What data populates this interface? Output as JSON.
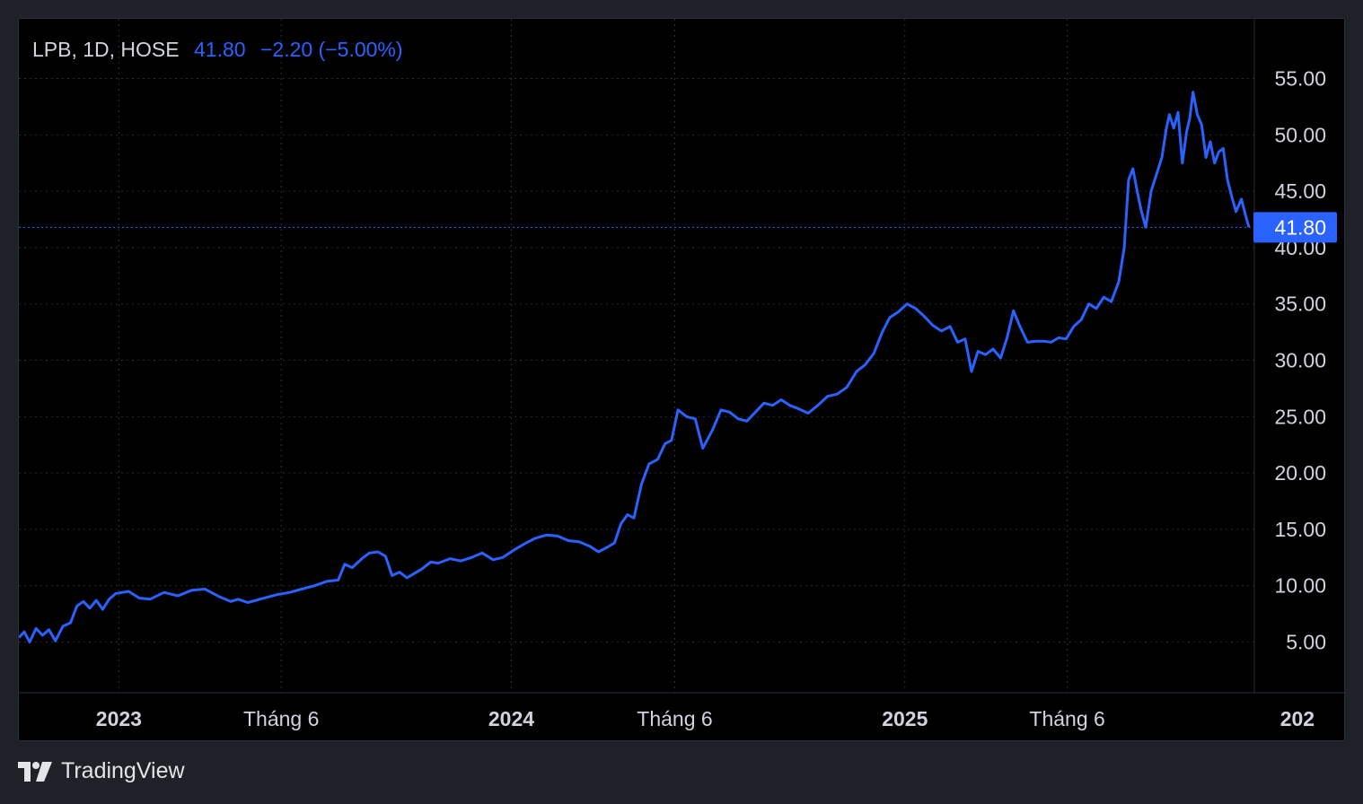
{
  "legend": {
    "symbol": "LPB, 1D, HOSE",
    "price": "41.80",
    "change": "−2.20 (−5.00%)"
  },
  "branding": {
    "name": "TradingView",
    "logo": "tradingview-logo-icon"
  },
  "colors": {
    "background": "#000000",
    "frame": "#1f2128",
    "line": "#2962ff",
    "grid": "#2a2e39",
    "axis_text": "#d1d4dc"
  },
  "chart_data": {
    "type": "line",
    "symbol": "LPB",
    "interval": "1D",
    "exchange": "HOSE",
    "ylim": [
      0.5,
      60.3
    ],
    "y_ticks": [
      5,
      10,
      15,
      20,
      25,
      30,
      35,
      40,
      45,
      50,
      55
    ],
    "y_tick_labels": [
      "5.00",
      "10.00",
      "15.00",
      "20.00",
      "25.00",
      "30.00",
      "35.00",
      "40.00",
      "45.00",
      "50.00",
      "55.00"
    ],
    "x_range": [
      "2022-09-30",
      "2025-11-22"
    ],
    "x_ticks": [
      {
        "date": "2023-01-01",
        "label": "2023",
        "bold": true
      },
      {
        "date": "2023-06-01",
        "label": "Tháng 6",
        "bold": false
      },
      {
        "date": "2024-01-01",
        "label": "2024",
        "bold": true
      },
      {
        "date": "2024-06-01",
        "label": "Tháng 6",
        "bold": false
      },
      {
        "date": "2025-01-01",
        "label": "2025",
        "bold": true
      },
      {
        "date": "2025-06-01",
        "label": "Tháng 6",
        "bold": false
      },
      {
        "date": "2026-01-01",
        "label": "202",
        "bold": true
      }
    ],
    "last_price": 41.8,
    "grid": true,
    "series": [
      {
        "points": [
          [
            "2022-09-30",
            5.4
          ],
          [
            "2022-10-05",
            5.9
          ],
          [
            "2022-10-10",
            5.0
          ],
          [
            "2022-10-16",
            6.2
          ],
          [
            "2022-10-22",
            5.6
          ],
          [
            "2022-10-28",
            6.1
          ],
          [
            "2022-11-03",
            5.1
          ],
          [
            "2022-11-10",
            6.4
          ],
          [
            "2022-11-17",
            6.7
          ],
          [
            "2022-11-23",
            8.2
          ],
          [
            "2022-11-29",
            8.6
          ],
          [
            "2022-12-05",
            8.0
          ],
          [
            "2022-12-11",
            8.7
          ],
          [
            "2022-12-17",
            7.9
          ],
          [
            "2022-12-23",
            8.8
          ],
          [
            "2022-12-29",
            9.3
          ],
          [
            "2023-01-10",
            9.5
          ],
          [
            "2023-01-20",
            8.9
          ],
          [
            "2023-01-30",
            8.8
          ],
          [
            "2023-02-12",
            9.4
          ],
          [
            "2023-02-25",
            9.1
          ],
          [
            "2023-03-10",
            9.6
          ],
          [
            "2023-03-22",
            9.7
          ],
          [
            "2023-04-05",
            9.0
          ],
          [
            "2023-04-15",
            8.6
          ],
          [
            "2023-04-22",
            8.8
          ],
          [
            "2023-05-01",
            8.5
          ],
          [
            "2023-05-12",
            8.8
          ],
          [
            "2023-05-28",
            9.2
          ],
          [
            "2023-06-09",
            9.4
          ],
          [
            "2023-06-20",
            9.7
          ],
          [
            "2023-07-02",
            10.0
          ],
          [
            "2023-07-14",
            10.4
          ],
          [
            "2023-07-24",
            10.5
          ],
          [
            "2023-07-30",
            11.9
          ],
          [
            "2023-08-06",
            11.6
          ],
          [
            "2023-08-15",
            12.4
          ],
          [
            "2023-08-22",
            12.9
          ],
          [
            "2023-08-30",
            13.0
          ],
          [
            "2023-09-06",
            12.6
          ],
          [
            "2023-09-12",
            10.9
          ],
          [
            "2023-09-19",
            11.2
          ],
          [
            "2023-09-26",
            10.7
          ],
          [
            "2023-10-03",
            11.1
          ],
          [
            "2023-10-10",
            11.5
          ],
          [
            "2023-10-18",
            12.1
          ],
          [
            "2023-10-25",
            12.0
          ],
          [
            "2023-11-05",
            12.4
          ],
          [
            "2023-11-15",
            12.2
          ],
          [
            "2023-11-25",
            12.5
          ],
          [
            "2023-12-05",
            12.9
          ],
          [
            "2023-12-15",
            12.3
          ],
          [
            "2023-12-24",
            12.5
          ],
          [
            "2024-01-04",
            13.2
          ],
          [
            "2024-01-13",
            13.7
          ],
          [
            "2024-01-23",
            14.2
          ],
          [
            "2024-02-03",
            14.5
          ],
          [
            "2024-02-13",
            14.4
          ],
          [
            "2024-02-23",
            14.0
          ],
          [
            "2024-03-04",
            13.9
          ],
          [
            "2024-03-14",
            13.5
          ],
          [
            "2024-03-22",
            13.0
          ],
          [
            "2024-03-30",
            13.4
          ],
          [
            "2024-04-06",
            13.8
          ],
          [
            "2024-04-12",
            15.5
          ],
          [
            "2024-04-18",
            16.3
          ],
          [
            "2024-04-24",
            16.0
          ],
          [
            "2024-05-01",
            19.0
          ],
          [
            "2024-05-08",
            20.8
          ],
          [
            "2024-05-16",
            21.2
          ],
          [
            "2024-05-23",
            22.6
          ],
          [
            "2024-05-29",
            22.9
          ],
          [
            "2024-06-04",
            25.6
          ],
          [
            "2024-06-12",
            25.0
          ],
          [
            "2024-06-20",
            24.8
          ],
          [
            "2024-06-27",
            22.2
          ],
          [
            "2024-07-06",
            23.8
          ],
          [
            "2024-07-14",
            25.6
          ],
          [
            "2024-07-22",
            25.4
          ],
          [
            "2024-07-30",
            24.8
          ],
          [
            "2024-08-07",
            24.6
          ],
          [
            "2024-08-15",
            25.4
          ],
          [
            "2024-08-23",
            26.2
          ],
          [
            "2024-08-31",
            26.0
          ],
          [
            "2024-09-08",
            26.5
          ],
          [
            "2024-09-16",
            26.0
          ],
          [
            "2024-09-24",
            25.7
          ],
          [
            "2024-10-03",
            25.3
          ],
          [
            "2024-10-12",
            26.0
          ],
          [
            "2024-10-21",
            26.8
          ],
          [
            "2024-10-30",
            27.0
          ],
          [
            "2024-11-08",
            27.6
          ],
          [
            "2024-11-17",
            29.0
          ],
          [
            "2024-11-25",
            29.6
          ],
          [
            "2024-12-03",
            30.6
          ],
          [
            "2024-12-11",
            32.5
          ],
          [
            "2024-12-18",
            33.8
          ],
          [
            "2024-12-26",
            34.3
          ],
          [
            "2025-01-03",
            35.0
          ],
          [
            "2025-01-11",
            34.6
          ],
          [
            "2025-01-19",
            33.9
          ],
          [
            "2025-01-27",
            33.1
          ],
          [
            "2025-02-04",
            32.6
          ],
          [
            "2025-02-12",
            33.0
          ],
          [
            "2025-02-19",
            31.6
          ],
          [
            "2025-02-26",
            31.9
          ],
          [
            "2025-03-04",
            29.0
          ],
          [
            "2025-03-10",
            30.8
          ],
          [
            "2025-03-17",
            30.5
          ],
          [
            "2025-03-24",
            31.0
          ],
          [
            "2025-03-31",
            30.2
          ],
          [
            "2025-04-06",
            32.0
          ],
          [
            "2025-04-12",
            34.4
          ],
          [
            "2025-04-18",
            33.0
          ],
          [
            "2025-04-25",
            31.6
          ],
          [
            "2025-05-03",
            31.7
          ],
          [
            "2025-05-10",
            31.7
          ],
          [
            "2025-05-17",
            31.6
          ],
          [
            "2025-05-24",
            32.0
          ],
          [
            "2025-05-31",
            31.9
          ],
          [
            "2025-06-07",
            33.0
          ],
          [
            "2025-06-14",
            33.6
          ],
          [
            "2025-06-21",
            35.0
          ],
          [
            "2025-06-28",
            34.6
          ],
          [
            "2025-07-05",
            35.6
          ],
          [
            "2025-07-12",
            35.2
          ],
          [
            "2025-07-19",
            37.0
          ],
          [
            "2025-07-24",
            40.0
          ],
          [
            "2025-07-28",
            46.0
          ],
          [
            "2025-08-01",
            47.0
          ],
          [
            "2025-08-05",
            45.0
          ],
          [
            "2025-08-09",
            43.2
          ],
          [
            "2025-08-13",
            41.8
          ],
          [
            "2025-08-18",
            45.0
          ],
          [
            "2025-08-23",
            46.5
          ],
          [
            "2025-08-28",
            48.0
          ],
          [
            "2025-09-01",
            50.5
          ],
          [
            "2025-09-04",
            51.8
          ],
          [
            "2025-09-08",
            50.6
          ],
          [
            "2025-09-12",
            52.0
          ],
          [
            "2025-09-16",
            47.5
          ],
          [
            "2025-09-20",
            50.3
          ],
          [
            "2025-09-23",
            51.5
          ],
          [
            "2025-09-26",
            53.8
          ],
          [
            "2025-09-30",
            51.8
          ],
          [
            "2025-10-04",
            50.9
          ],
          [
            "2025-10-08",
            48.0
          ],
          [
            "2025-10-12",
            49.4
          ],
          [
            "2025-10-16",
            47.5
          ],
          [
            "2025-10-20",
            48.5
          ],
          [
            "2025-10-24",
            48.8
          ],
          [
            "2025-10-28",
            46.0
          ],
          [
            "2025-11-01",
            44.5
          ],
          [
            "2025-11-05",
            43.2
          ],
          [
            "2025-11-10",
            44.3
          ],
          [
            "2025-11-14",
            42.8
          ],
          [
            "2025-11-17",
            41.8
          ]
        ]
      }
    ]
  }
}
